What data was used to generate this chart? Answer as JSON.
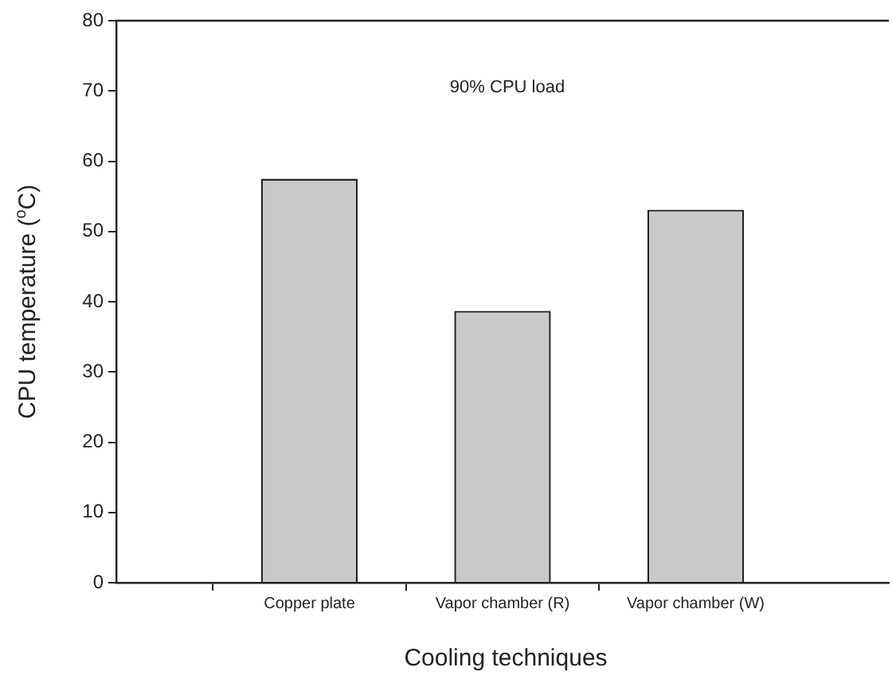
{
  "chart_data": {
    "type": "bar",
    "xlabel": "Cooling techniques",
    "ylabel": "CPU temperature ($^{o}$C)",
    "categories": [
      null,
      "Copper plate",
      "Vapor chamber (R)",
      "Vapor chamber (W)",
      null
    ],
    "values": [
      null,
      57.5,
      38.7,
      53.1,
      null
    ],
    "color": "#c8c9cb",
    "ylim": [
      0,
      80
    ],
    "yticks": [
      0,
      10,
      20,
      30,
      40,
      50,
      60,
      70,
      80
    ],
    "annotations": [
      "90% CPU load"
    ],
    "grid": false,
    "legend": false
  }
}
